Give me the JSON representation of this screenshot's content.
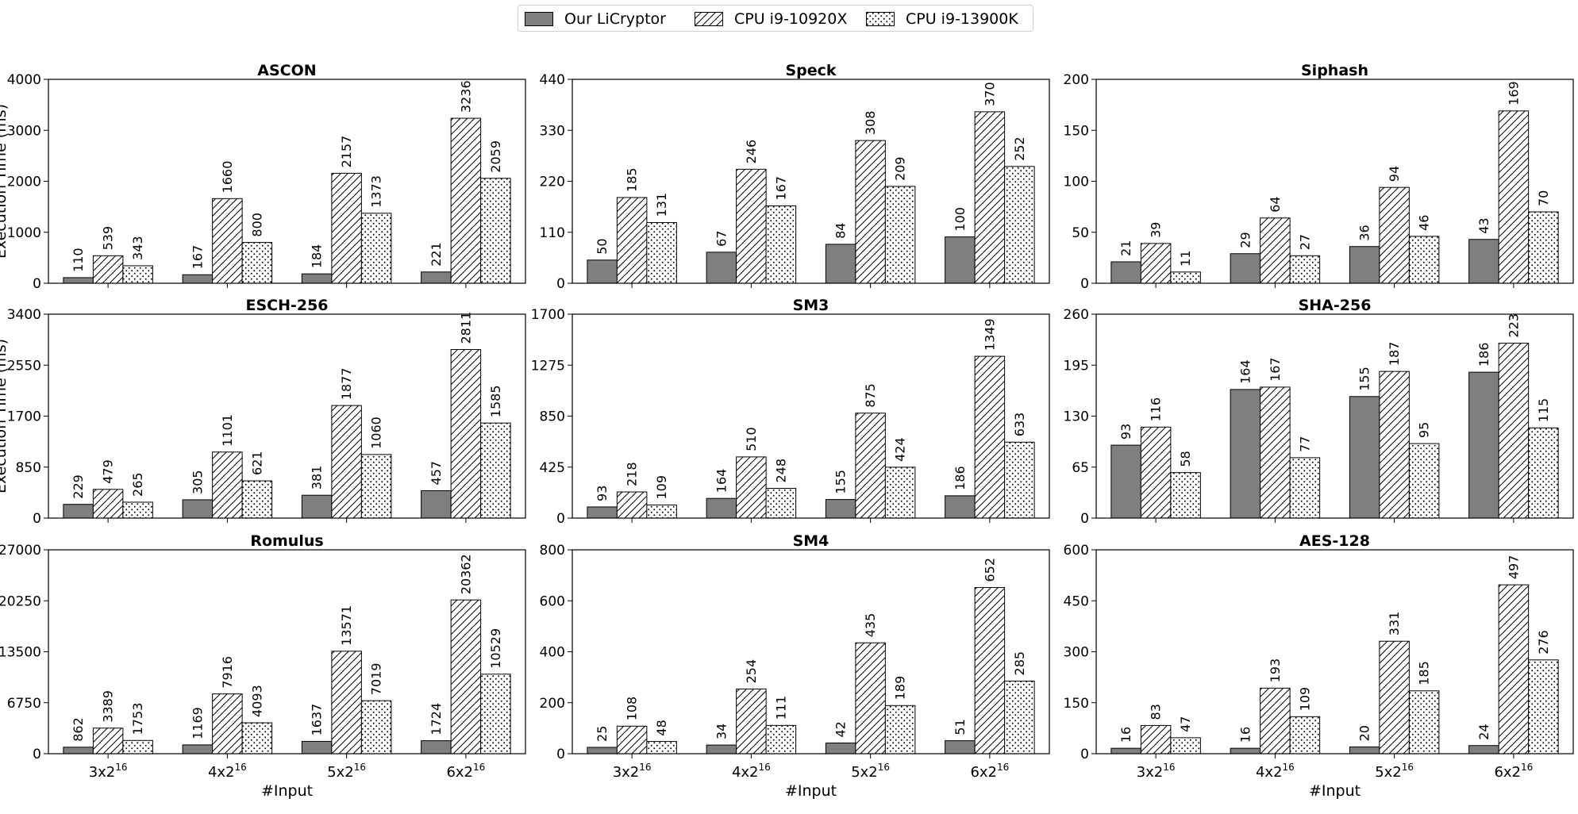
{
  "legend": [
    {
      "label": "Our LiCryptor",
      "pattern": "solid"
    },
    {
      "label": "CPU i9-10920X",
      "pattern": "hatch"
    },
    {
      "label": "CPU i9-13900K",
      "pattern": "dots"
    }
  ],
  "colors": {
    "solid": "#7f7f7f",
    "edge": "#000000"
  },
  "chart_data": [
    {
      "type": "bar",
      "title": "ASCON",
      "ylabel": "Execution Time (ms)",
      "xlabel": "",
      "ylim": [
        0,
        4000
      ],
      "yticks": [
        0,
        1000,
        2000,
        3000,
        4000
      ],
      "categories": [
        "3x2^16",
        "4x2^16",
        "5x2^16",
        "6x2^16"
      ],
      "series": [
        {
          "name": "Our LiCryptor",
          "values": [
            110,
            167,
            184,
            221
          ]
        },
        {
          "name": "CPU i9-10920X",
          "values": [
            539,
            1660,
            2157,
            3236
          ]
        },
        {
          "name": "CPU i9-13900K",
          "values": [
            343,
            800,
            1373,
            2059
          ]
        }
      ]
    },
    {
      "type": "bar",
      "title": "Speck",
      "ylabel": "",
      "xlabel": "",
      "ylim": [
        0,
        440
      ],
      "yticks": [
        0,
        110,
        220,
        330,
        440
      ],
      "categories": [
        "3x2^16",
        "4x2^16",
        "5x2^16",
        "6x2^16"
      ],
      "series": [
        {
          "name": "Our LiCryptor",
          "values": [
            50,
            67,
            84,
            100
          ]
        },
        {
          "name": "CPU i9-10920X",
          "values": [
            185,
            246,
            308,
            370
          ]
        },
        {
          "name": "CPU i9-13900K",
          "values": [
            131,
            167,
            209,
            252
          ]
        }
      ]
    },
    {
      "type": "bar",
      "title": "Siphash",
      "ylabel": "",
      "xlabel": "",
      "ylim": [
        0,
        200
      ],
      "yticks": [
        0,
        50,
        100,
        150,
        200
      ],
      "categories": [
        "3x2^16",
        "4x2^16",
        "5x2^16",
        "6x2^16"
      ],
      "series": [
        {
          "name": "Our LiCryptor",
          "values": [
            21,
            29,
            36,
            43
          ]
        },
        {
          "name": "CPU i9-10920X",
          "values": [
            39,
            64,
            94,
            169
          ]
        },
        {
          "name": "CPU i9-13900K",
          "values": [
            11,
            27,
            46,
            70
          ]
        }
      ]
    },
    {
      "type": "bar",
      "title": "ESCH-256",
      "ylabel": "Execution Time (ms)",
      "xlabel": "",
      "ylim": [
        0,
        3400
      ],
      "yticks": [
        0,
        850,
        1700,
        2550,
        3400
      ],
      "categories": [
        "3x2^16",
        "4x2^16",
        "5x2^16",
        "6x2^16"
      ],
      "series": [
        {
          "name": "Our LiCryptor",
          "values": [
            229,
            305,
            381,
            457
          ]
        },
        {
          "name": "CPU i9-10920X",
          "values": [
            479,
            1101,
            1877,
            2811
          ]
        },
        {
          "name": "CPU i9-13900K",
          "values": [
            265,
            621,
            1060,
            1585
          ]
        }
      ]
    },
    {
      "type": "bar",
      "title": "SM3",
      "ylabel": "",
      "xlabel": "",
      "ylim": [
        0,
        1700
      ],
      "yticks": [
        0,
        425,
        850,
        1275,
        1700
      ],
      "categories": [
        "3x2^16",
        "4x2^16",
        "5x2^16",
        "6x2^16"
      ],
      "series": [
        {
          "name": "Our LiCryptor",
          "values": [
            93,
            164,
            155,
            186
          ]
        },
        {
          "name": "CPU i9-10920X",
          "values": [
            218,
            510,
            875,
            1349
          ]
        },
        {
          "name": "CPU i9-13900K",
          "values": [
            109,
            248,
            424,
            633
          ]
        }
      ]
    },
    {
      "type": "bar",
      "title": "SHA-256",
      "ylabel": "",
      "xlabel": "",
      "ylim": [
        0,
        260
      ],
      "yticks": [
        0,
        65,
        130,
        195,
        260
      ],
      "categories": [
        "3x2^16",
        "4x2^16",
        "5x2^16",
        "6x2^16"
      ],
      "series": [
        {
          "name": "Our LiCryptor",
          "values": [
            93,
            164,
            155,
            186
          ]
        },
        {
          "name": "CPU i9-10920X",
          "values": [
            116,
            167,
            187,
            223
          ]
        },
        {
          "name": "CPU i9-13900K",
          "values": [
            58,
            77,
            95,
            115
          ]
        }
      ]
    },
    {
      "type": "bar",
      "title": "Romulus",
      "ylabel": "",
      "xlabel": "#Input",
      "ylim": [
        0,
        27000
      ],
      "yticks": [
        0,
        6750,
        13500,
        20250,
        27000
      ],
      "categories": [
        "3x2^16",
        "4x2^16",
        "5x2^16",
        "6x2^16"
      ],
      "series": [
        {
          "name": "Our LiCryptor",
          "values": [
            862,
            1169,
            1637,
            1724
          ]
        },
        {
          "name": "CPU i9-10920X",
          "values": [
            3389,
            7916,
            13571,
            20362
          ]
        },
        {
          "name": "CPU i9-13900K",
          "values": [
            1753,
            4093,
            7019,
            10529
          ]
        }
      ]
    },
    {
      "type": "bar",
      "title": "SM4",
      "ylabel": "",
      "xlabel": "#Input",
      "ylim": [
        0,
        800
      ],
      "yticks": [
        0,
        200,
        400,
        600,
        800
      ],
      "categories": [
        "3x2^16",
        "4x2^16",
        "5x2^16",
        "6x2^16"
      ],
      "series": [
        {
          "name": "Our LiCryptor",
          "values": [
            25,
            34,
            42,
            51
          ]
        },
        {
          "name": "CPU i9-10920X",
          "values": [
            108,
            254,
            435,
            652
          ]
        },
        {
          "name": "CPU i9-13900K",
          "values": [
            48,
            111,
            189,
            285
          ]
        }
      ]
    },
    {
      "type": "bar",
      "title": "AES-128",
      "ylabel": "",
      "xlabel": "#Input",
      "ylim": [
        0,
        600
      ],
      "yticks": [
        0,
        150,
        300,
        450,
        600
      ],
      "categories": [
        "3x2^16",
        "4x2^16",
        "5x2^16",
        "6x2^16"
      ],
      "series": [
        {
          "name": "Our LiCryptor",
          "values": [
            16,
            16,
            20,
            24
          ]
        },
        {
          "name": "CPU i9-10920X",
          "values": [
            83,
            193,
            331,
            497
          ]
        },
        {
          "name": "CPU i9-13900K",
          "values": [
            47,
            109,
            185,
            276
          ]
        }
      ]
    }
  ]
}
